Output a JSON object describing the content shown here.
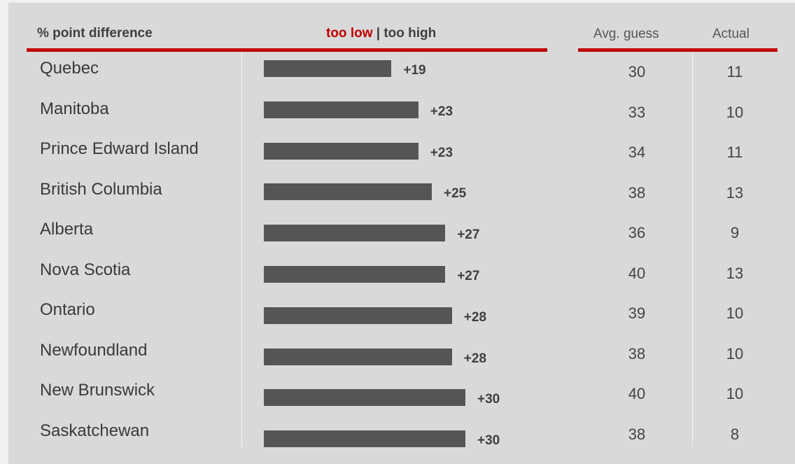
{
  "header": {
    "left": "% point difference",
    "too_low": "too low",
    "separator": " | ",
    "too_high": "too high",
    "avg_guess": "Avg. guess",
    "actual": "Actual"
  },
  "colors": {
    "accent": "#c00000",
    "bar": "#555555",
    "panel": "#d9d9d9"
  },
  "chart_data": {
    "type": "bar",
    "orientation": "horizontal",
    "categories": [
      "Quebec",
      "Manitoba",
      "Prince Edward Island",
      "British Columbia",
      "Alberta",
      "Nova Scotia",
      "Ontario",
      "Newfoundland",
      "New Brunswick",
      "Saskatchewan"
    ],
    "values": [
      19,
      23,
      23,
      25,
      27,
      27,
      28,
      28,
      30,
      30
    ],
    "value_labels": [
      "+19",
      "+23",
      "+23",
      "+25",
      "+27",
      "+27",
      "+28",
      "+28",
      "+30",
      "+30"
    ],
    "table": {
      "columns": [
        "Avg. guess",
        "Actual"
      ],
      "avg_guess": [
        "30",
        "33",
        "34",
        "38",
        "36",
        "40",
        "39",
        "38",
        "40",
        "38"
      ],
      "actual": [
        "11",
        "10",
        "11",
        "13",
        "9",
        "13",
        "10",
        "10",
        "10",
        "8"
      ]
    },
    "title": "",
    "xlabel": "% point difference",
    "ylabel": "",
    "grid": false
  }
}
